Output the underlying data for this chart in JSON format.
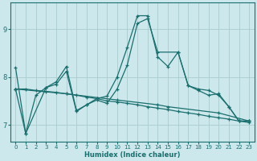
{
  "xlabel": "Humidex (Indice chaleur)",
  "background_color": "#cce8ec",
  "grid_color": "#aacccc",
  "line_color": "#1a6e6e",
  "xlim": [
    -0.5,
    23.5
  ],
  "ylim": [
    6.65,
    9.55
  ],
  "yticks": [
    7,
    8,
    9
  ],
  "xticks": [
    0,
    1,
    2,
    3,
    4,
    5,
    6,
    7,
    8,
    9,
    10,
    11,
    12,
    13,
    14,
    15,
    16,
    17,
    18,
    19,
    20,
    21,
    22,
    23
  ],
  "lines": [
    {
      "x": [
        0,
        1,
        3,
        4,
        5,
        6,
        7,
        8,
        9,
        10,
        11,
        12,
        13,
        14,
        15,
        16,
        17,
        18,
        19,
        20,
        21,
        22,
        23
      ],
      "y": [
        8.2,
        6.82,
        7.78,
        7.9,
        8.22,
        7.3,
        7.42,
        7.55,
        7.6,
        8.0,
        8.62,
        9.28,
        9.28,
        8.42,
        8.22,
        8.52,
        7.82,
        7.75,
        7.72,
        7.62,
        7.38,
        7.08,
        7.08
      ]
    },
    {
      "x": [
        0,
        1,
        2,
        3,
        4,
        5,
        6,
        7,
        8,
        9,
        10,
        11,
        12,
        13,
        14,
        15,
        16,
        17,
        18,
        19,
        20,
        21,
        22,
        23
      ],
      "y": [
        7.75,
        7.75,
        7.72,
        7.7,
        7.68,
        7.65,
        7.62,
        7.58,
        7.55,
        7.5,
        7.48,
        7.45,
        7.42,
        7.38,
        7.35,
        7.32,
        7.28,
        7.25,
        7.22,
        7.18,
        7.15,
        7.12,
        7.08,
        7.05
      ]
    },
    {
      "x": [
        0,
        1,
        2,
        3,
        4,
        5,
        6,
        7,
        8,
        9,
        10,
        11,
        12,
        13,
        14,
        16,
        17,
        18,
        19,
        20,
        21,
        22,
        23
      ],
      "y": [
        7.75,
        6.82,
        7.62,
        7.78,
        7.85,
        8.12,
        7.28,
        7.42,
        7.52,
        7.45,
        7.75,
        8.25,
        9.12,
        9.22,
        8.52,
        8.52,
        7.82,
        7.72,
        7.62,
        7.65,
        7.38,
        7.08,
        7.08
      ]
    },
    {
      "x": [
        0,
        5,
        10,
        14,
        15,
        20,
        23
      ],
      "y": [
        7.75,
        7.65,
        7.52,
        7.42,
        7.38,
        7.25,
        7.08
      ]
    }
  ]
}
